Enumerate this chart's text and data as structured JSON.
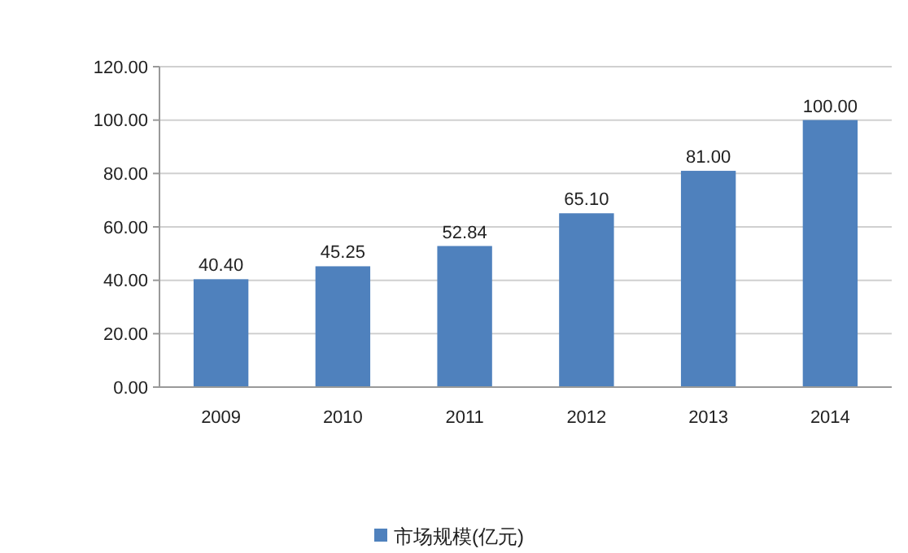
{
  "chart_data": {
    "type": "bar",
    "categories": [
      "2009",
      "2010",
      "2011",
      "2012",
      "2013",
      "2014"
    ],
    "series": [
      {
        "name": "市场规模(亿元)",
        "color": "#4f81bd",
        "values": [
          40.4,
          45.25,
          52.84,
          65.1,
          81,
          100
        ],
        "value_labels": [
          "40.40",
          "45.25",
          "52.84",
          "65.10",
          "81.00",
          "100.00"
        ]
      }
    ],
    "ylim": [
      0,
      120
    ],
    "yticks": [
      {
        "value": 0,
        "label": "0.00"
      },
      {
        "value": 20,
        "label": "20.00"
      },
      {
        "value": 40,
        "label": "40.00"
      },
      {
        "value": 60,
        "label": "60.00"
      },
      {
        "value": 80,
        "label": "80.00"
      },
      {
        "value": 100,
        "label": "100.00"
      },
      {
        "value": 120,
        "label": "120.00"
      }
    ],
    "grid": "y",
    "legend": "bottom"
  }
}
